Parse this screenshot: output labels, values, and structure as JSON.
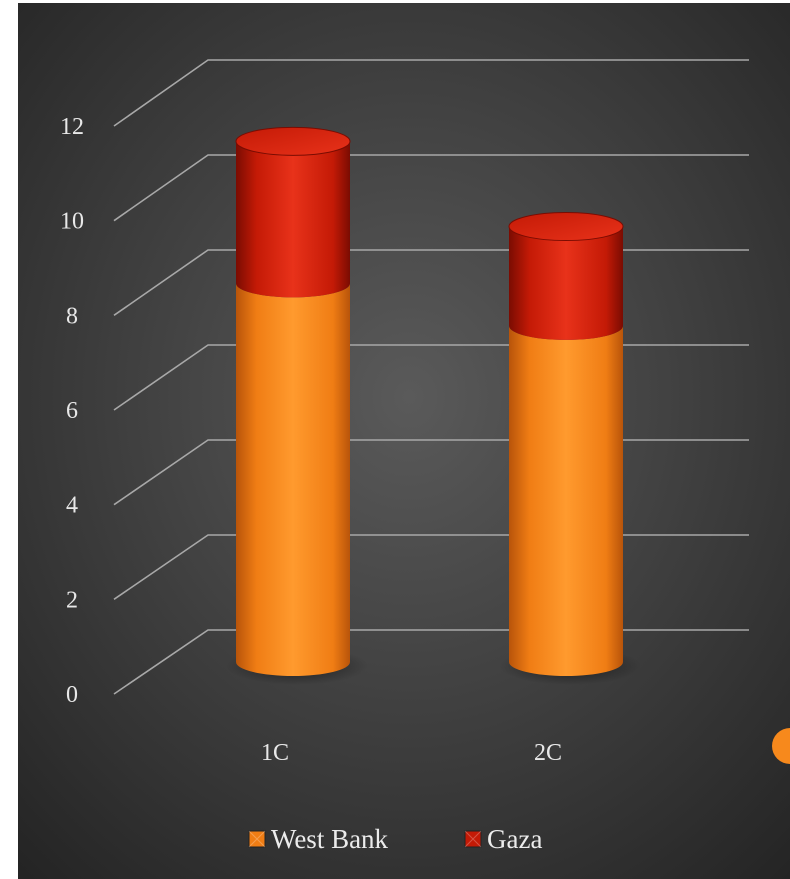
{
  "colors": {
    "background_center": "#5a5a5a",
    "background_edge": "#232323",
    "gridline": "#a8a8a8",
    "text": "#e8e8e8",
    "west_bank_light": "#ff9a2e",
    "west_bank": "#f07d14",
    "west_bank_dark": "#b8540a",
    "gaza_light": "#e8321a",
    "gaza": "#c41a06",
    "gaza_dark": "#7a0c02"
  },
  "chart_data": {
    "type": "bar",
    "stacked": true,
    "style": "3d-cylinder",
    "categories": [
      "1C",
      "2C"
    ],
    "series": [
      {
        "name": "West Bank",
        "values": [
          8.0,
          7.1
        ]
      },
      {
        "name": "Gaza",
        "values": [
          3.0,
          2.1
        ]
      }
    ],
    "ylim": [
      0,
      12
    ],
    "yticks": [
      "0",
      "2",
      "4",
      "6",
      "8",
      "10",
      "12"
    ],
    "grid": true,
    "legend": "bottom"
  }
}
